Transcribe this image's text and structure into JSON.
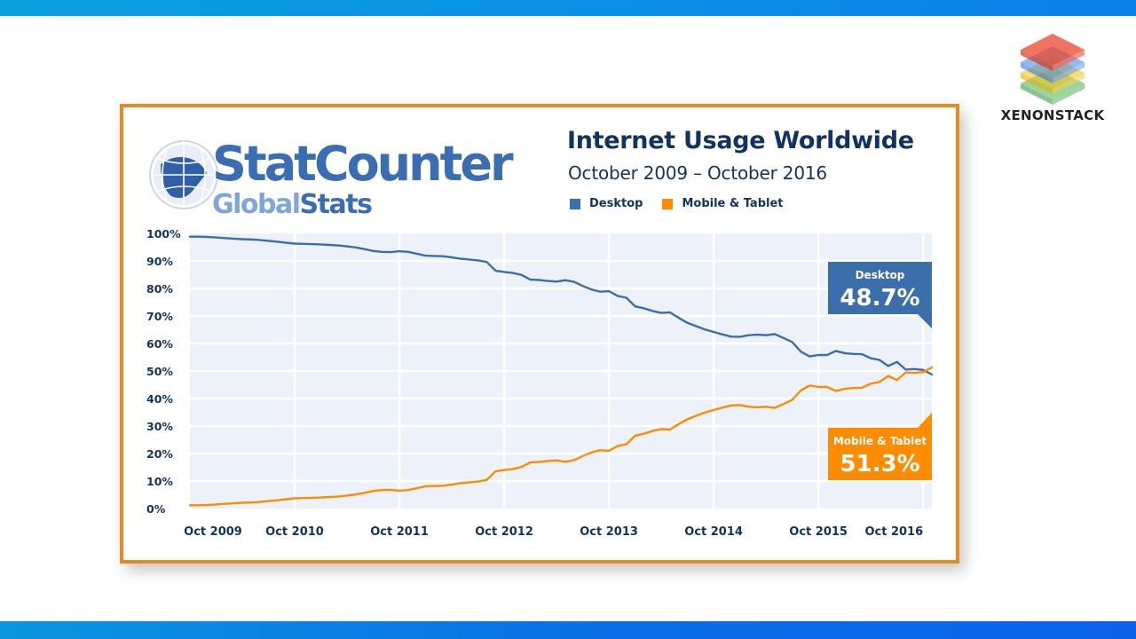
{
  "slide": {
    "brand": {
      "name": "XENONSTACK",
      "icon": "stacked-layers-logo"
    },
    "top_bar_colors": [
      "#0aa0e0",
      "#0a80ea"
    ],
    "bottom_bar_colors": [
      "#0a96e0",
      "#0a62e8"
    ],
    "frame_color": "#e88a1e"
  },
  "source_logo": {
    "line1": "StatCounter",
    "line2_part1": "Global",
    "line2_part2": "Stats",
    "icon": "globe-icon"
  },
  "chart_data": {
    "type": "line",
    "title": "Internet Usage Worldwide",
    "subtitle": "October 2009 – October 2016",
    "xlabel": "",
    "ylabel": "",
    "ylim": [
      0,
      100
    ],
    "yticks": [
      "0%",
      "10%",
      "20%",
      "30%",
      "40%",
      "50%",
      "60%",
      "70%",
      "80%",
      "90%",
      "100%"
    ],
    "xticks": [
      {
        "label": "Oct 2009",
        "index": 0
      },
      {
        "label": "Oct 2010",
        "index": 12
      },
      {
        "label": "Oct 2011",
        "index": 24
      },
      {
        "label": "Oct 2012",
        "index": 36
      },
      {
        "label": "Oct 2013",
        "index": 48
      },
      {
        "label": "Oct 2014",
        "index": 60
      },
      {
        "label": "Oct 2015",
        "index": 72
      },
      {
        "label": "Oct 2016",
        "index": 84
      }
    ],
    "grid": true,
    "legend_position": "top",
    "series": [
      {
        "name": "Desktop",
        "color": "#3c6eab",
        "values": [
          98.8,
          98.8,
          98.7,
          98.5,
          98.3,
          98.1,
          97.9,
          97.8,
          97.6,
          97.3,
          97.0,
          96.6,
          96.3,
          96.2,
          96.1,
          96.0,
          95.8,
          95.6,
          95.3,
          94.9,
          94.3,
          93.6,
          93.3,
          93.2,
          93.5,
          93.3,
          92.6,
          91.9,
          91.8,
          91.7,
          91.3,
          90.8,
          90.5,
          90.2,
          89.6,
          86.5,
          86.0,
          85.6,
          84.9,
          83.2,
          83.1,
          82.7,
          82.5,
          83.0,
          82.4,
          80.9,
          79.6,
          78.8,
          79.0,
          77.3,
          76.6,
          73.5,
          72.8,
          71.8,
          71.1,
          71.3,
          69.3,
          67.5,
          66.3,
          65.1,
          64.2,
          63.3,
          62.5,
          62.4,
          63.0,
          63.2,
          63.0,
          63.4,
          62.0,
          60.5,
          57.0,
          55.3,
          55.8,
          55.8,
          57.3,
          56.5,
          56.2,
          56.1,
          54.6,
          54.0,
          51.8,
          53.3,
          50.5,
          50.7,
          50.4,
          48.7
        ],
        "end_label": "48.7%"
      },
      {
        "name": "Mobile & Tablet",
        "color": "#ff8c00",
        "values": [
          1.2,
          1.2,
          1.3,
          1.5,
          1.7,
          1.9,
          2.1,
          2.2,
          2.4,
          2.7,
          3.0,
          3.4,
          3.7,
          3.8,
          3.9,
          4.0,
          4.2,
          4.4,
          4.7,
          5.1,
          5.7,
          6.4,
          6.7,
          6.8,
          6.5,
          6.7,
          7.4,
          8.1,
          8.2,
          8.3,
          8.7,
          9.2,
          9.5,
          9.8,
          10.4,
          13.5,
          14.0,
          14.4,
          15.1,
          16.8,
          16.9,
          17.3,
          17.5,
          17.0,
          17.6,
          19.1,
          20.4,
          21.2,
          21.0,
          22.7,
          23.4,
          26.5,
          27.2,
          28.2,
          28.9,
          28.7,
          30.7,
          32.5,
          33.7,
          34.9,
          35.8,
          36.7,
          37.5,
          37.6,
          37.0,
          36.8,
          37.0,
          36.6,
          38.0,
          39.5,
          43.0,
          44.7,
          44.2,
          44.2,
          42.7,
          43.5,
          43.8,
          43.9,
          45.4,
          46.0,
          48.2,
          46.7,
          49.5,
          49.3,
          49.6,
          51.3
        ],
        "end_label": "51.3%"
      }
    ],
    "annotations": [
      {
        "series": "Desktop",
        "label": "Desktop",
        "value": "48.7%",
        "color": "#3c6eab"
      },
      {
        "series": "Mobile & Tablet",
        "label": "Mobile & Tablet",
        "value": "51.3%",
        "color": "#ff8c00"
      }
    ]
  }
}
